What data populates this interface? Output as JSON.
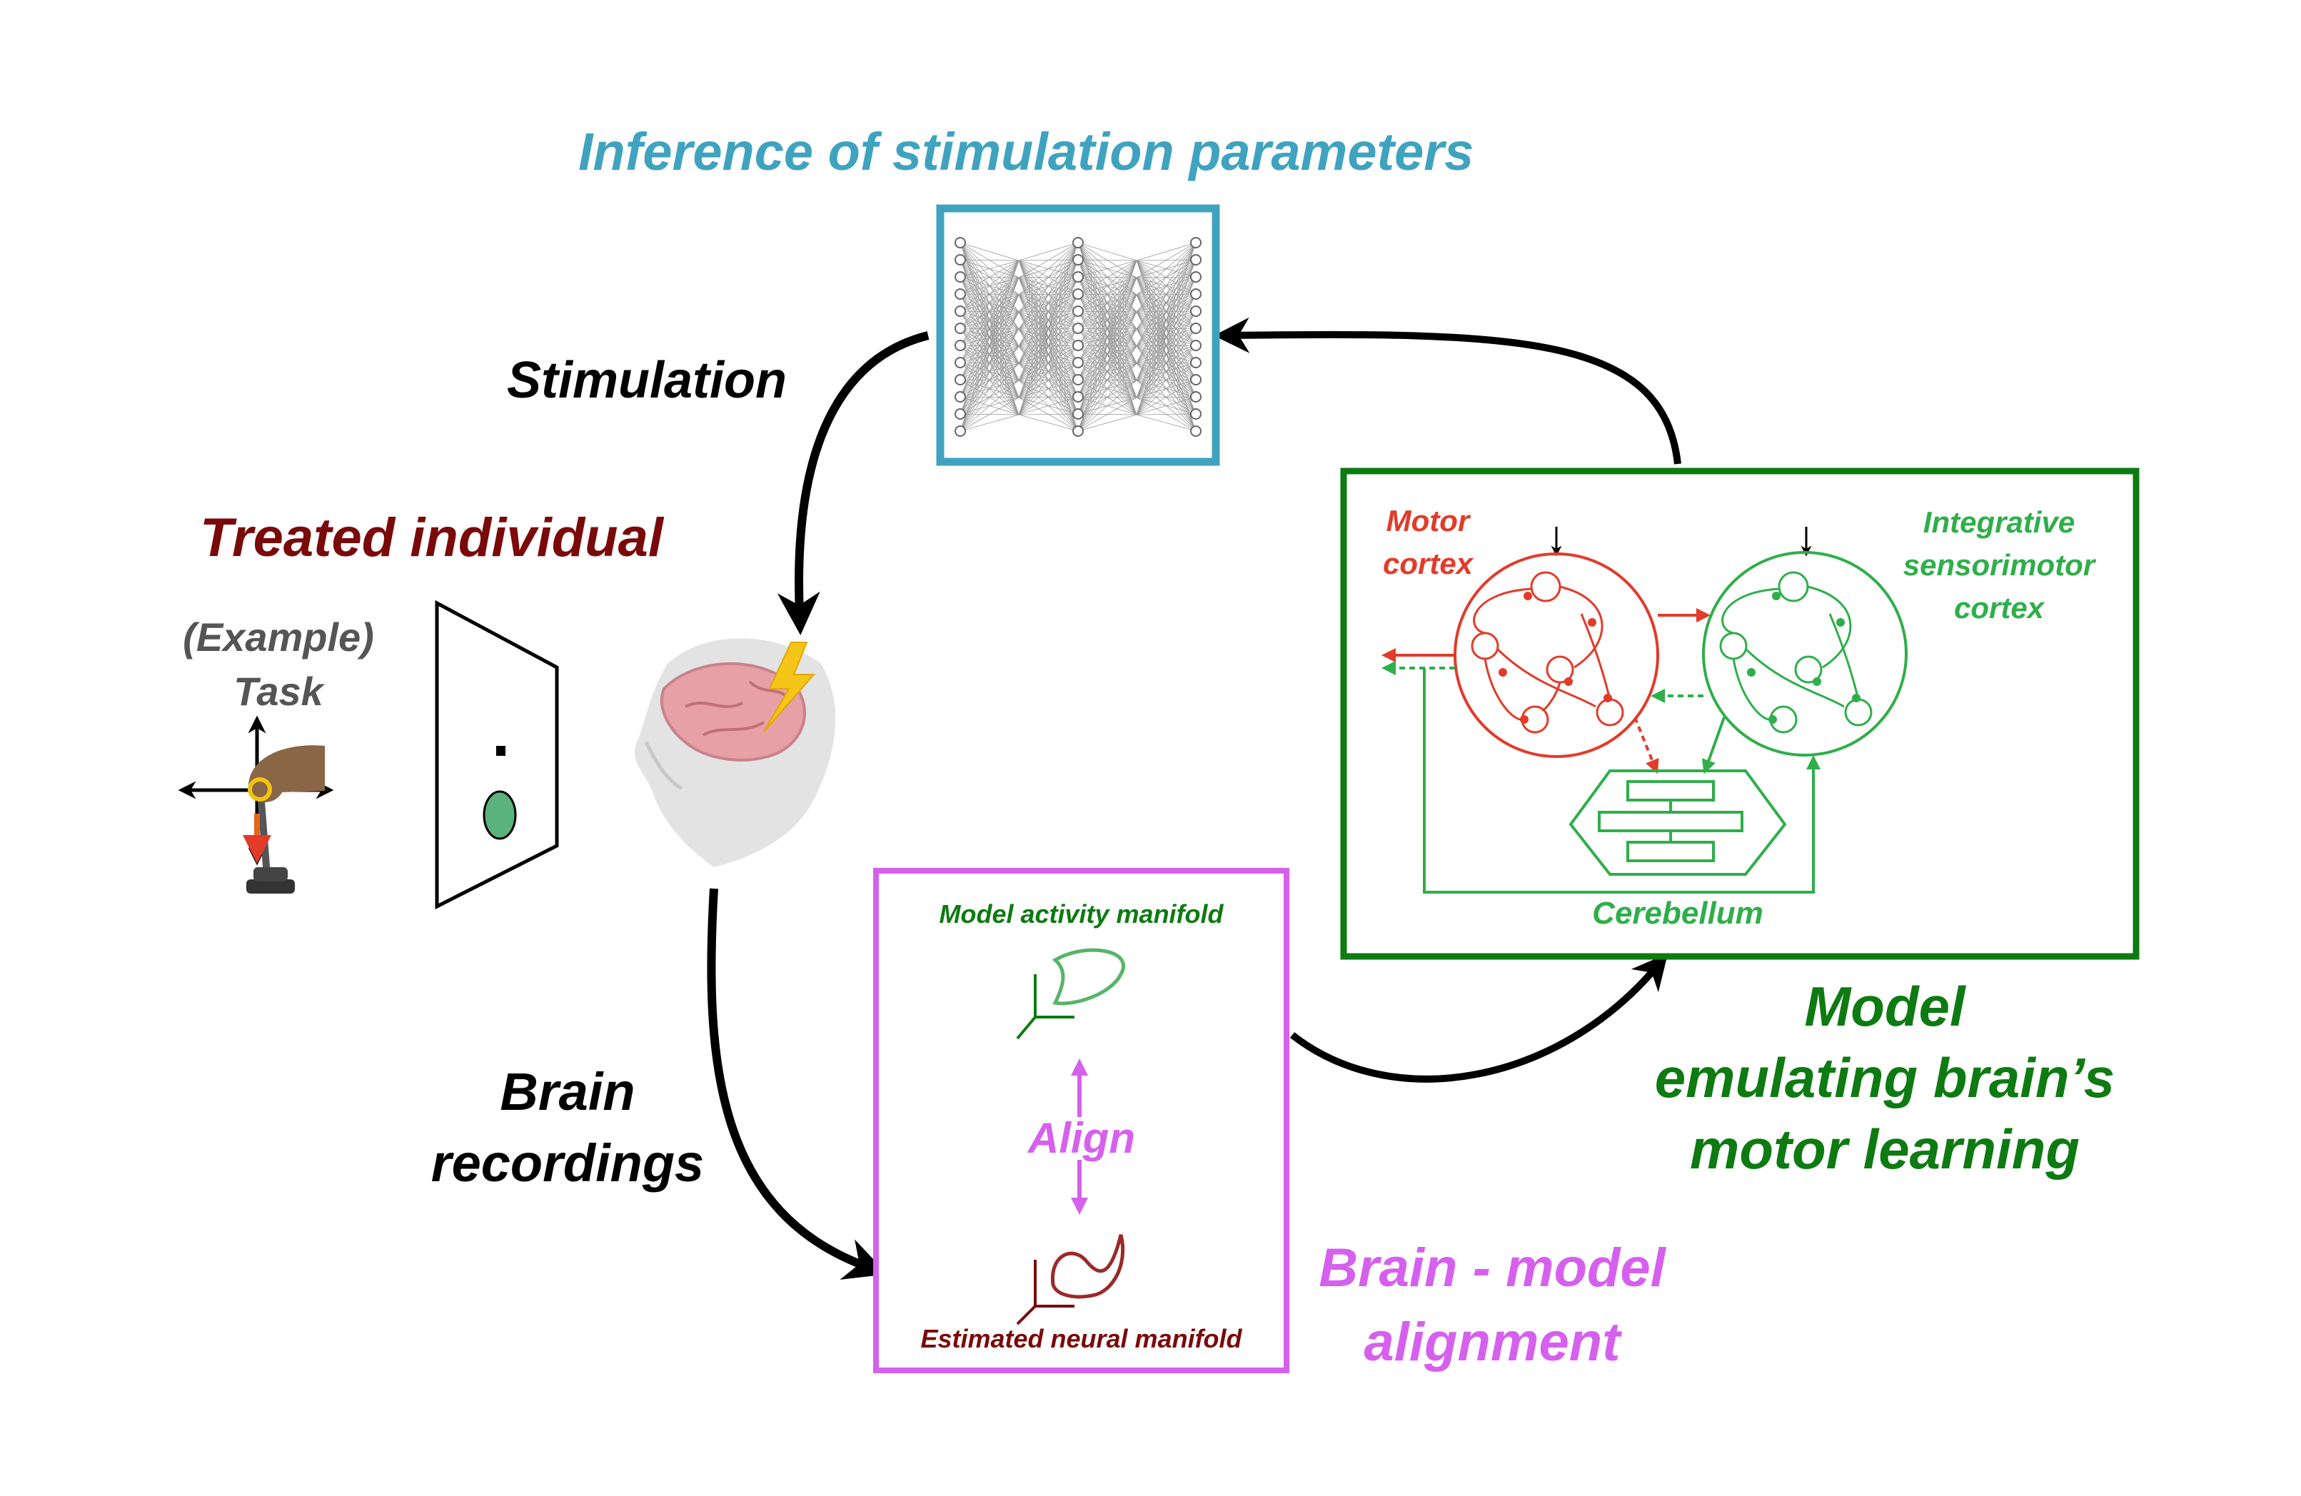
{
  "title": "Inference of stimulation parameters",
  "arrows": {
    "stimulation": "Stimulation",
    "brain_recordings": [
      "Brain",
      "recordings"
    ]
  },
  "treated_individual": {
    "title": "Treated individual",
    "task_label": [
      "(Example)",
      "Task"
    ]
  },
  "alignment_box": {
    "model_manifold": "Model activity manifold",
    "align": "Align",
    "neural_manifold": "Estimated neural manifold",
    "caption": [
      "Brain - model",
      "alignment"
    ]
  },
  "model_box": {
    "motor_cortex": [
      "Motor",
      "cortex"
    ],
    "sensorimotor_cortex": [
      "Integrative",
      "sensorimotor",
      "cortex"
    ],
    "cerebellum": "Cerebellum",
    "caption": [
      "Model",
      "emulating brain’s",
      "motor learning"
    ]
  },
  "colors": {
    "teal": "#3fa3bf",
    "dark_red": "#7a0a0a",
    "magenta": "#d660ee",
    "green": "#0e7a12",
    "light_green": "#2fae4a",
    "red": "#e23b2a",
    "gray_text": "#555555"
  }
}
